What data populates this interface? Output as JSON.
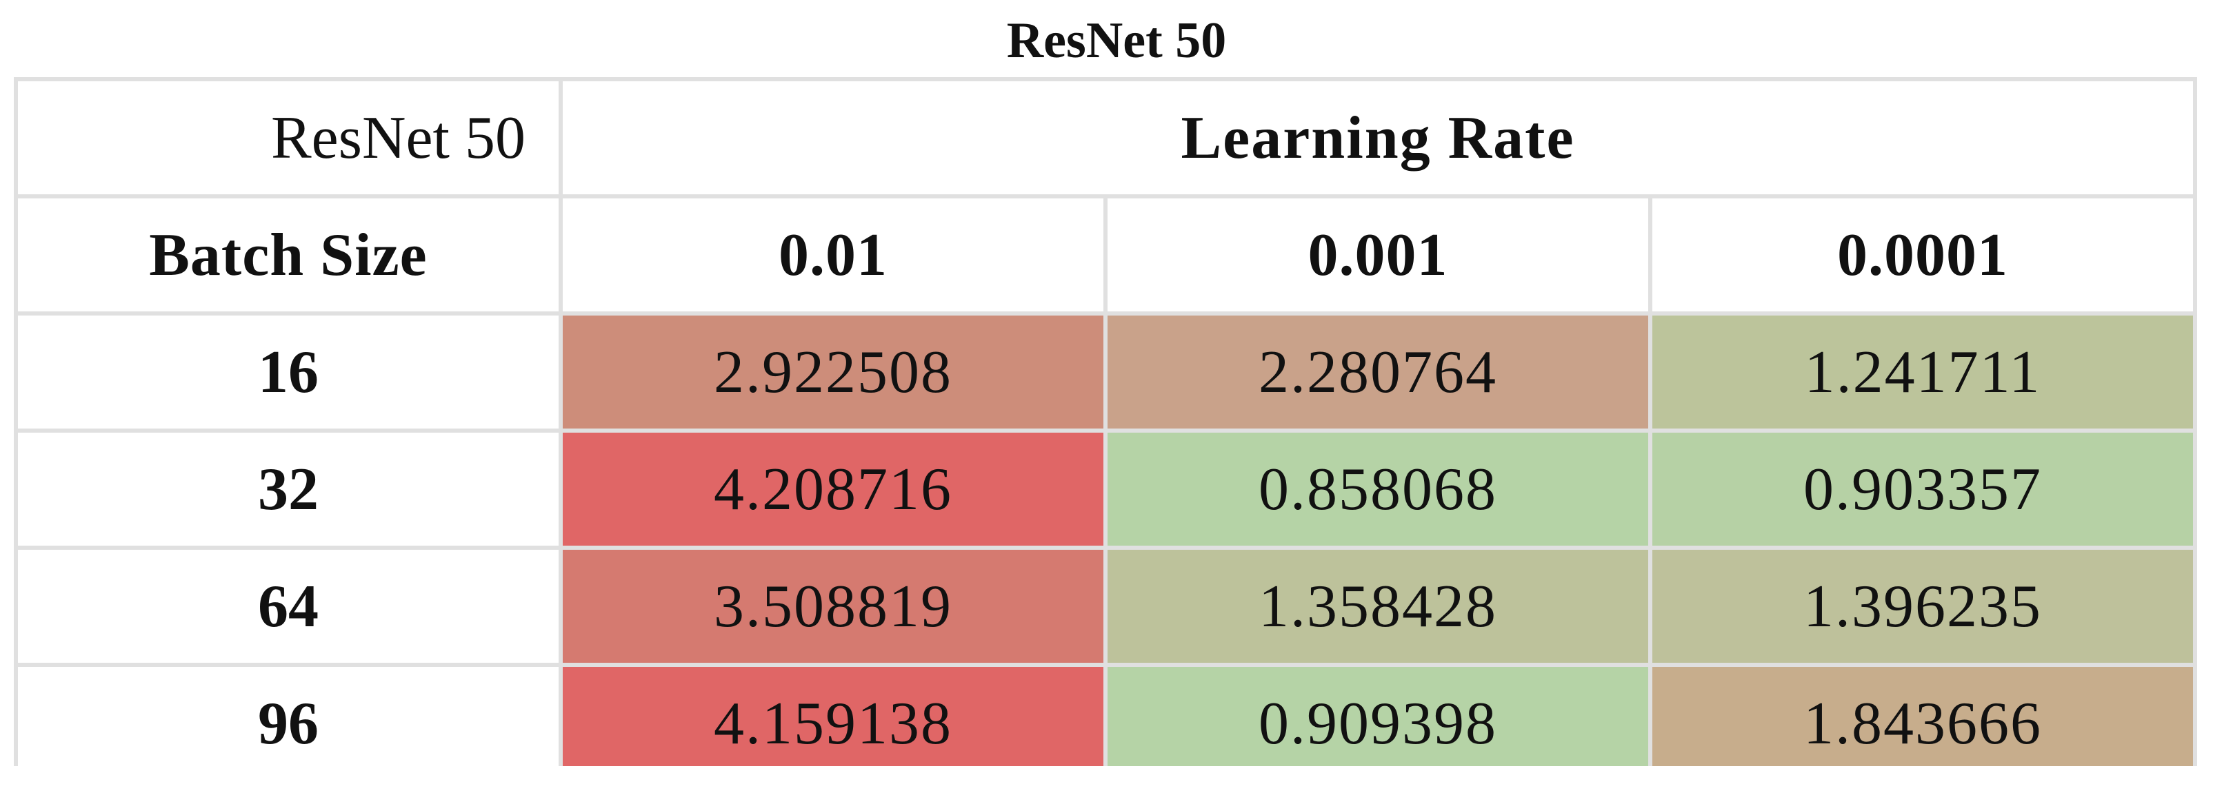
{
  "title": "ResNet 50",
  "chart_data": {
    "type": "heatmap",
    "title": "ResNet 50",
    "corner_label": "ResNet 50",
    "column_group_label": "Learning Rate",
    "row_header_label": "Batch Size",
    "columns": [
      "0.01",
      "0.001",
      "0.0001"
    ],
    "rows": [
      "16",
      "32",
      "64",
      "96"
    ],
    "values": [
      [
        "2.922508",
        "2.280764",
        "1.241711"
      ],
      [
        "4.208716",
        "0.858068",
        "0.903357"
      ],
      [
        "3.508819",
        "1.358428",
        "1.396235"
      ],
      [
        "4.159138",
        "0.909398",
        "1.843666"
      ]
    ],
    "colors": [
      [
        "#cd8d7a",
        "#c9a28a",
        "#bcc49b"
      ],
      [
        "#e06666",
        "#b5d3a6",
        "#b6d1a5"
      ],
      [
        "#d57a70",
        "#bdc29b",
        "#bec19b"
      ],
      [
        "#e06666",
        "#b5d3a6",
        "#c7ad8c"
      ]
    ]
  }
}
